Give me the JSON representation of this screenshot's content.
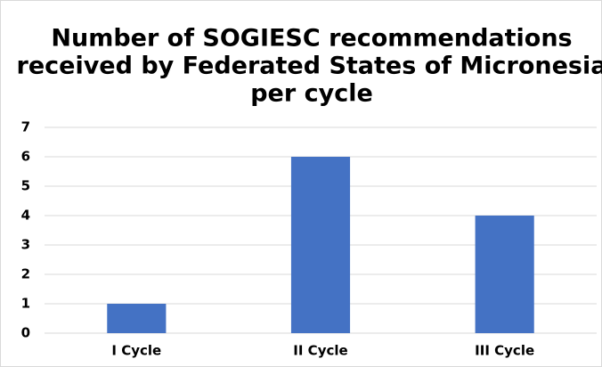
{
  "chart_data": {
    "type": "bar",
    "title_lines": [
      "Number of SOGIESC recommendations",
      "received by Federated States of Micronesia",
      "per cycle"
    ],
    "categories": [
      "I Cycle",
      "II Cycle",
      "III Cycle"
    ],
    "values": [
      1,
      6,
      4
    ],
    "color": "#4472c4",
    "ylim": [
      0,
      7
    ],
    "yticks": [
      0,
      1,
      2,
      3,
      4,
      5,
      6,
      7
    ],
    "grid": true
  }
}
